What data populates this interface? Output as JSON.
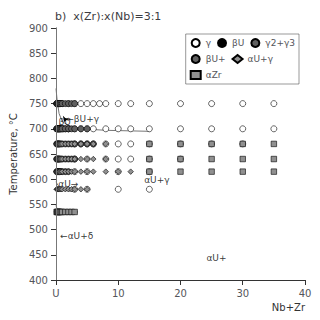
{
  "chart_data": {
    "type": "scatter",
    "title": "b)  x(Zr):x(Nb)=3:1",
    "xlabel": "Nb+Zr",
    "ylabel": "Temperature, °C",
    "xlim": [
      0,
      40
    ],
    "ylim": [
      400,
      900
    ],
    "xticks": [
      {
        "value": 0,
        "label": "U"
      },
      10,
      20,
      30,
      40
    ],
    "yticks": [
      400,
      450,
      500,
      550,
      600,
      650,
      700,
      750,
      800,
      850,
      900
    ],
    "grid": false,
    "legend": "upper right",
    "series": [
      {
        "type": "line",
        "color": "#777777",
        "x": [
          0.0,
          0.2,
          0.5,
          1.0,
          2.0,
          4.0,
          8.0,
          15.0
        ],
        "values": [
          780,
          755,
          730,
          715,
          706,
          700,
          697,
          695
        ]
      },
      {
        "type": "line",
        "color": "#777777",
        "x": [
          0.0,
          0.3,
          0.8,
          1.5,
          3.0
        ],
        "values": [
          595,
          588,
          582,
          578,
          575
        ]
      },
      {
        "type": "line",
        "color": "#777777",
        "x": [
          0.0,
          0.2,
          0.5,
          1.0,
          2.0
        ],
        "values": [
          548,
          540,
          535,
          532,
          530
        ]
      },
      {
        "name": "γ",
        "type": "scatter",
        "marker": "circle",
        "color": "#ffffff",
        "x": [
          2,
          3,
          4,
          5,
          6,
          7,
          8,
          10,
          12,
          15,
          20,
          25,
          30,
          35,
          2,
          3,
          4,
          5,
          6,
          8,
          10,
          12,
          15,
          20,
          25,
          30,
          35,
          3,
          4,
          5,
          6,
          8,
          10,
          12,
          15,
          20,
          25,
          30,
          3,
          5,
          8,
          10,
          12,
          15,
          20,
          3,
          5,
          10,
          15,
          3,
          5,
          10,
          15
        ],
        "values": [
          750,
          750,
          750,
          750,
          750,
          750,
          750,
          750,
          750,
          750,
          750,
          750,
          750,
          750,
          700,
          700,
          700,
          700,
          700,
          700,
          700,
          700,
          700,
          700,
          700,
          700,
          700,
          670,
          670,
          670,
          670,
          670,
          670,
          670,
          670,
          670,
          670,
          670,
          640,
          640,
          640,
          640,
          640,
          640,
          640,
          615,
          615,
          615,
          615,
          580,
          580,
          580,
          580
        ]
      },
      {
        "name": "βU",
        "type": "scatter",
        "marker": "circle",
        "color": "#000000",
        "x": [
          0.1,
          0.2,
          0.3,
          0.4,
          0.5,
          0.6,
          0.7,
          0.8,
          1.0,
          0.1,
          0.2,
          0.3,
          0.4,
          0.5,
          0.6,
          0.7,
          0.8,
          1.0,
          1.2,
          1.5,
          2.0
        ],
        "values": [
          750,
          750,
          750,
          750,
          750,
          750,
          750,
          750,
          750,
          700,
          700,
          700,
          700,
          700,
          700,
          700,
          700,
          700,
          700,
          700,
          700
        ]
      },
      {
        "name": "γ2+γ3",
        "type": "scatter",
        "marker": "circle",
        "color": "#606060",
        "x": [],
        "values": []
      },
      {
        "name": "βU+",
        "type": "scatter",
        "marker": "circle",
        "color": "#606060",
        "x": [
          0.1,
          0.2,
          0.3,
          0.4,
          0.5,
          0.6,
          0.8,
          1.0,
          1.5,
          2.0,
          2.5,
          3.0,
          0.1,
          0.2,
          0.3,
          0.4,
          0.5,
          0.6,
          0.8,
          1.0,
          1.5,
          2.0,
          2.5,
          3.0,
          4.0,
          5.0,
          0.1,
          0.2,
          0.3,
          0.4,
          0.5,
          0.6,
          0.8,
          1.0,
          1.5,
          2.0,
          2.5,
          3.0,
          4.0,
          5.0,
          6.0,
          0.1,
          0.2,
          0.3,
          0.4,
          0.5,
          0.6,
          0.8,
          1.0,
          1.5,
          2.0,
          2.5,
          3.0,
          0.1,
          0.2,
          0.3,
          0.4,
          0.5,
          0.6,
          0.8,
          1.0,
          1.5,
          2.0
        ],
        "values": [
          750,
          750,
          750,
          750,
          750,
          750,
          750,
          750,
          750,
          750,
          750,
          750,
          700,
          700,
          700,
          700,
          700,
          700,
          700,
          700,
          700,
          700,
          700,
          700,
          700,
          700,
          670,
          670,
          670,
          670,
          670,
          670,
          670,
          670,
          670,
          670,
          670,
          670,
          670,
          670,
          670,
          640,
          640,
          640,
          640,
          640,
          640,
          640,
          640,
          640,
          640,
          640,
          640,
          615,
          615,
          615,
          615,
          615,
          615,
          615,
          615,
          615,
          615
        ]
      },
      {
        "name": "αU+γ",
        "type": "scatter",
        "marker": "diamond",
        "color": "#909090",
        "x": [
          0.1,
          0.2,
          0.3,
          0.4,
          0.5,
          0.6,
          0.8,
          1.0,
          1.5,
          2.0,
          2.5,
          3.0,
          4.0,
          5.0,
          6.0,
          8.0,
          0.1,
          0.2,
          0.3,
          0.4,
          0.5,
          0.6,
          0.8,
          1.0,
          1.5,
          2.0,
          2.5,
          3.0,
          4.0,
          5.0,
          6.0,
          8.0,
          0.1,
          0.2,
          0.3,
          0.4,
          0.5,
          0.6,
          0.8,
          1.0,
          1.5,
          2.0,
          2.5,
          3.0,
          4.0,
          5.0,
          6.0,
          8.0,
          10.0,
          12.0,
          0.1,
          0.2,
          0.3,
          0.4,
          0.5,
          0.6,
          0.8,
          1.0,
          1.5,
          2.0,
          2.5,
          3.0,
          4.0,
          5.0,
          0.1,
          0.2,
          0.3,
          0.4,
          0.5,
          0.6,
          0.8,
          1.0,
          1.5,
          2.0,
          2.5,
          3.0
        ],
        "values": [
          670,
          670,
          670,
          670,
          670,
          670,
          670,
          670,
          670,
          670,
          670,
          670,
          670,
          670,
          670,
          670,
          640,
          640,
          640,
          640,
          640,
          640,
          640,
          640,
          640,
          640,
          640,
          640,
          640,
          640,
          640,
          640,
          615,
          615,
          615,
          615,
          615,
          615,
          615,
          615,
          615,
          615,
          615,
          615,
          615,
          615,
          615,
          615,
          615,
          615,
          580,
          580,
          580,
          580,
          580,
          580,
          580,
          580,
          580,
          580,
          580,
          580,
          580,
          580,
          535,
          535,
          535,
          535,
          535,
          535,
          535,
          535,
          535,
          535,
          535,
          535
        ]
      },
      {
        "name": "αZr",
        "type": "scatter",
        "marker": "square",
        "color": "#909090",
        "x": [
          0.1,
          0.2,
          0.3,
          0.4,
          0.5,
          0.6,
          0.8,
          1.0,
          1.5,
          2.0,
          2.5,
          3.0,
          15,
          20,
          25,
          30,
          35,
          15,
          20,
          25,
          30,
          35,
          15,
          20,
          25,
          30,
          35
        ],
        "values": [
          535,
          535,
          535,
          535,
          535,
          535,
          535,
          535,
          535,
          535,
          535,
          535,
          670,
          670,
          670,
          670,
          670,
          640,
          640,
          640,
          640,
          640,
          615,
          615,
          615,
          615,
          615
        ]
      }
    ],
    "vlines": [
      {
        "x": 0,
        "color": "#777777"
      }
    ],
    "arrows": [
      {
        "from": [
          1.5,
          720
        ],
        "to": [
          1.3,
          714
        ]
      }
    ],
    "annotations": [
      {
        "text": "βU",
        "x": 0.25,
        "y": 714
      },
      {
        "text": "←βU+γ",
        "x": 1.5,
        "y": 720
      },
      {
        "text": "αU→",
        "x": 0.2,
        "y": 590
      },
      {
        "text": "αU+γ",
        "x": 14,
        "y": 598
      },
      {
        "text": "←αU+δ",
        "x": 0.5,
        "y": 487
      },
      {
        "text": "αU+",
        "x": 24,
        "y": 443
      }
    ]
  }
}
